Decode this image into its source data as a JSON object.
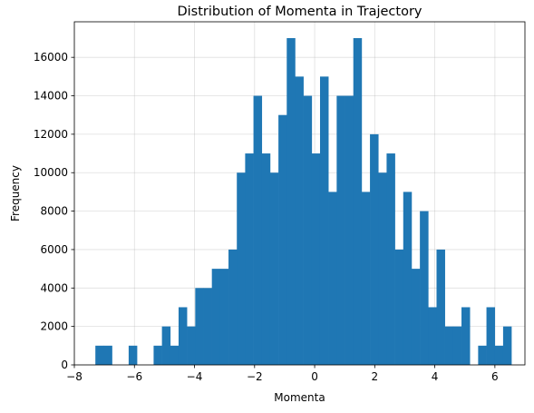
{
  "chart_data": {
    "type": "bar",
    "title": "Distribution of Momenta in Trajectory",
    "xlabel": "Momenta",
    "ylabel": "Frequency",
    "xlim": [
      -8,
      7
    ],
    "ylim": [
      0,
      17850
    ],
    "xticks": [
      -8,
      -6,
      -4,
      -2,
      0,
      2,
      4,
      6
    ],
    "xtick_labels": [
      "−8",
      "−6",
      "−4",
      "−2",
      "0",
      "2",
      "4",
      "6"
    ],
    "yticks": [
      0,
      2000,
      4000,
      6000,
      8000,
      10000,
      12000,
      14000,
      16000
    ],
    "ytick_labels": [
      "0",
      "2000",
      "4000",
      "6000",
      "8000",
      "10000",
      "12000",
      "14000",
      "16000"
    ],
    "grid": true,
    "bar_color": "#1f77b4",
    "bin_start": -7.3,
    "bin_width": 0.277,
    "values": [
      1000,
      1000,
      0,
      0,
      1000,
      0,
      0,
      1000,
      2000,
      1000,
      3000,
      2000,
      4000,
      4000,
      5000,
      5000,
      6000,
      10000,
      11000,
      14000,
      11000,
      10000,
      13000,
      17000,
      15000,
      14000,
      11000,
      15000,
      9000,
      14000,
      14000,
      17000,
      9000,
      12000,
      10000,
      11000,
      6000,
      9000,
      5000,
      8000,
      3000,
      6000,
      2000,
      2000,
      3000,
      0,
      1000,
      3000,
      1000,
      2000
    ]
  }
}
